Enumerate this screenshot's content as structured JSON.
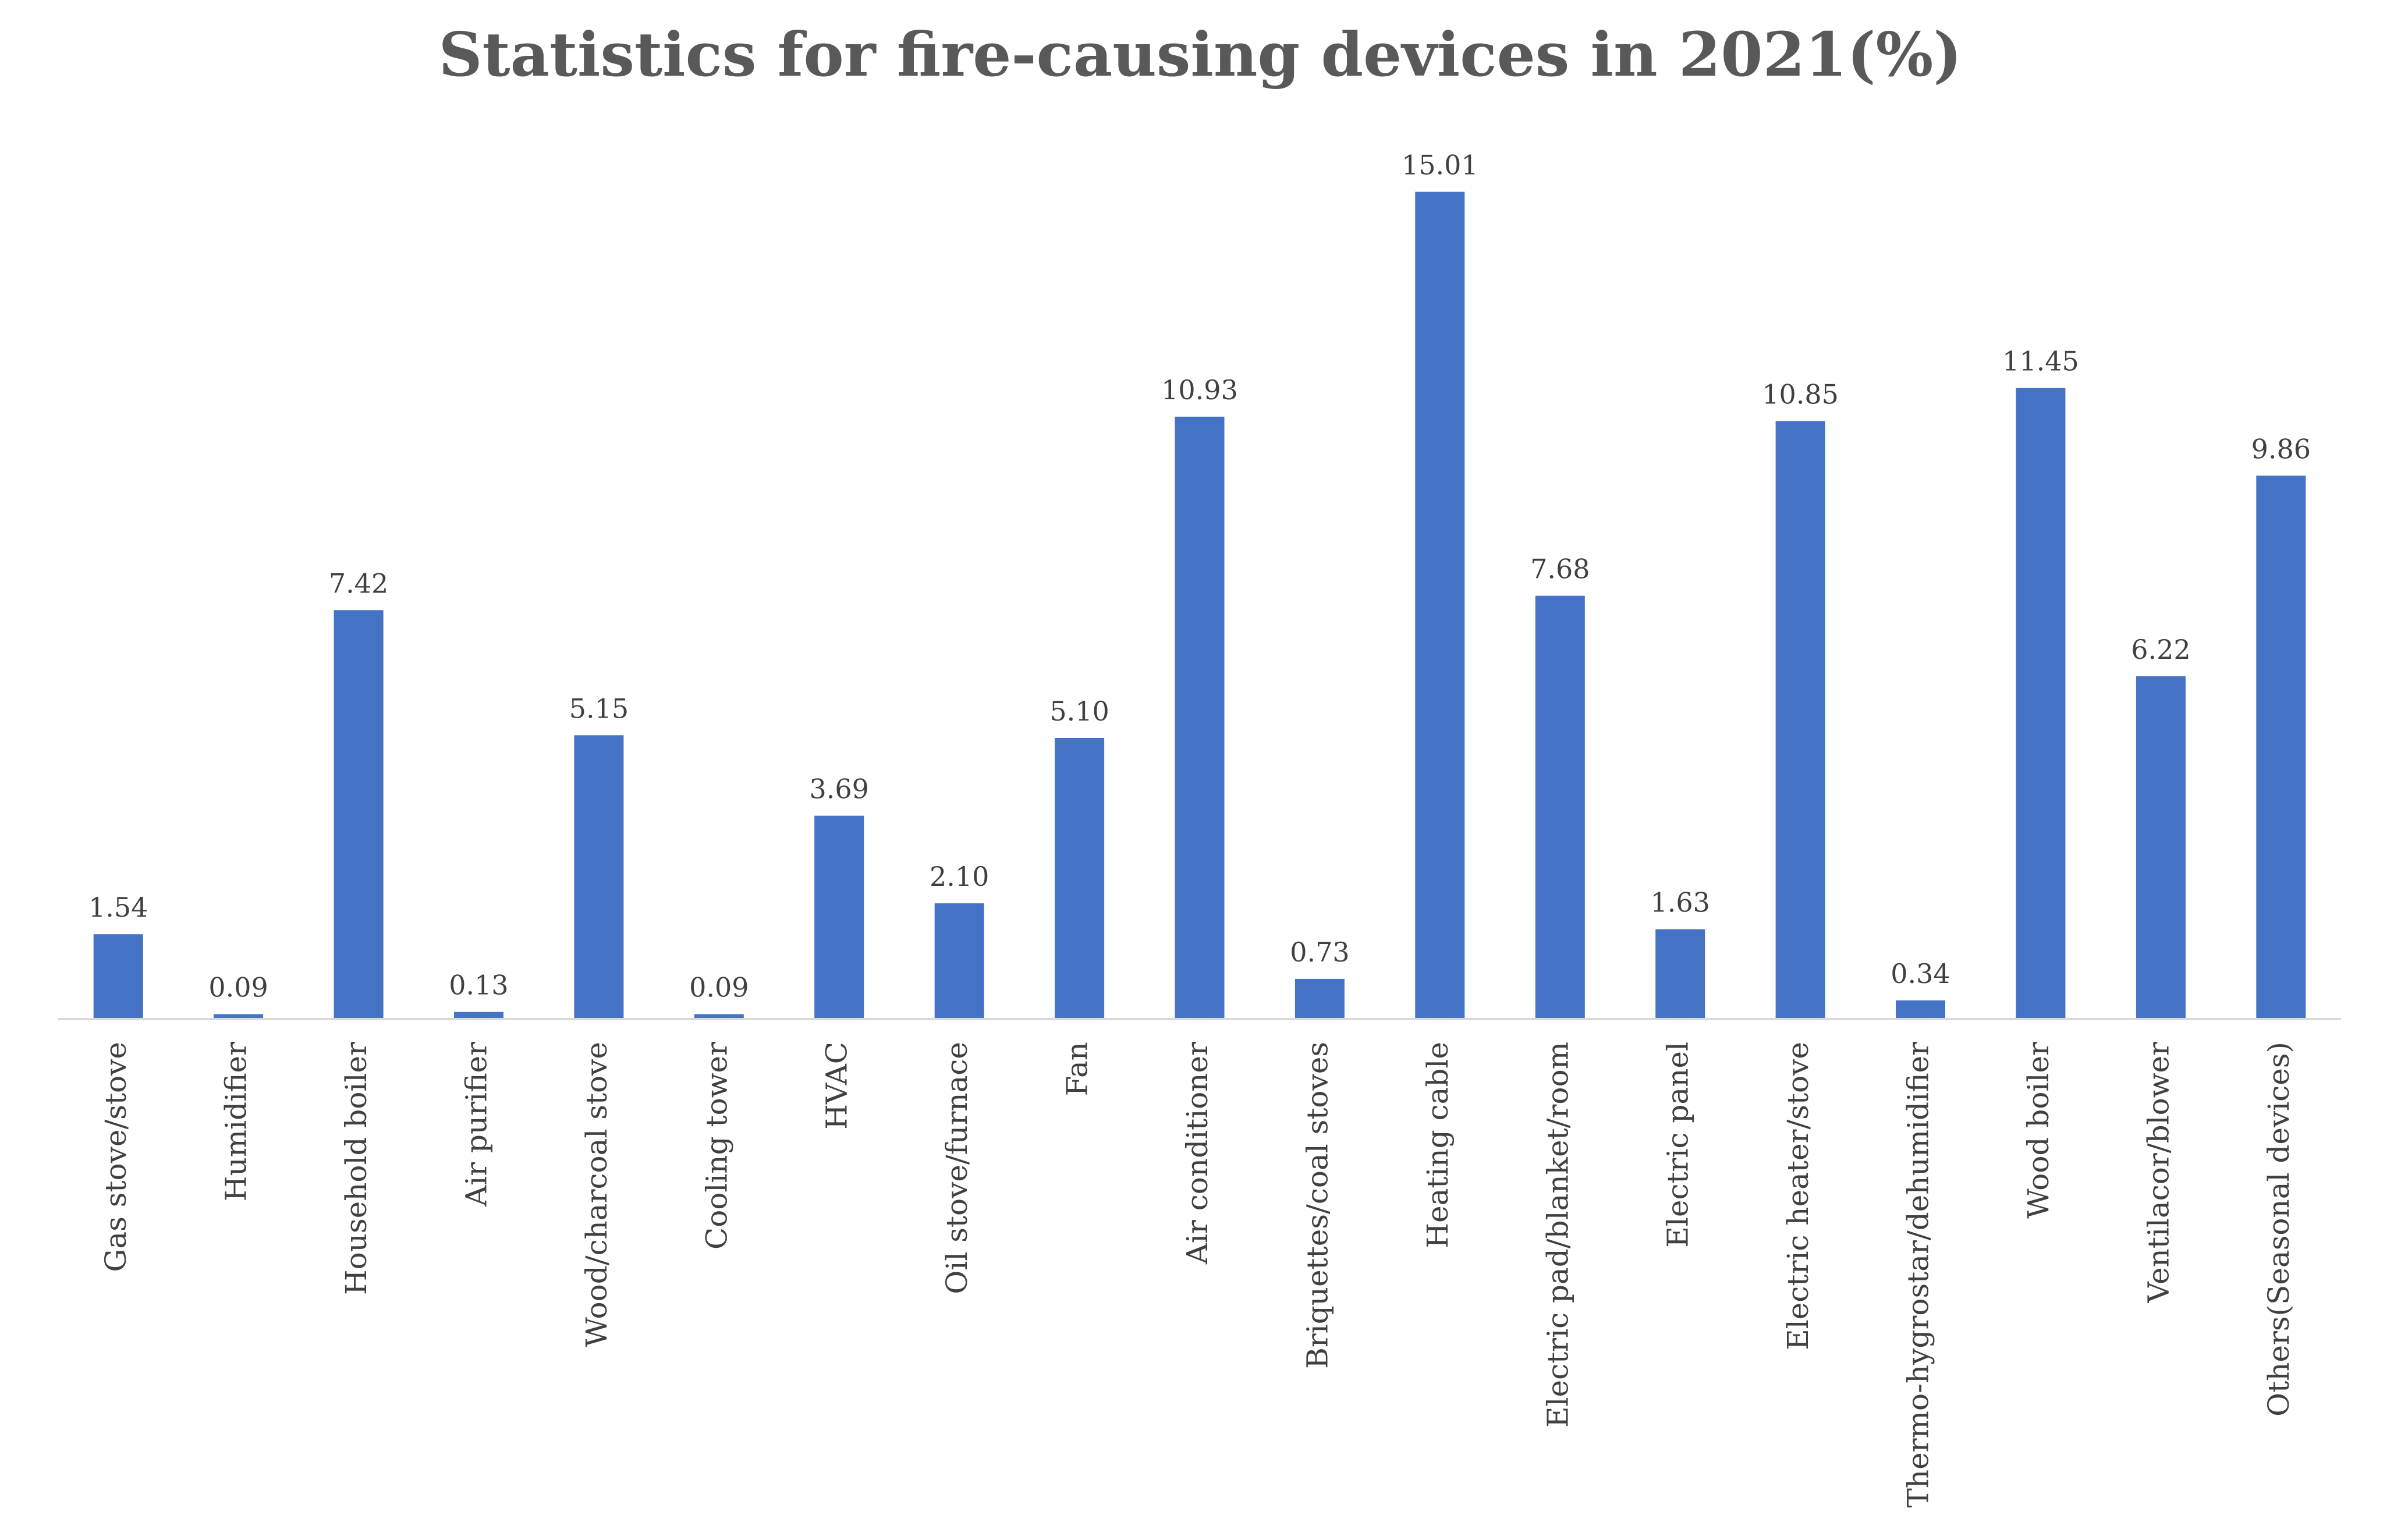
{
  "chart_data": {
    "type": "bar",
    "title": "Statistics for fire-causing devices in 2021(%)",
    "xlabel": "",
    "ylabel": "",
    "ylim": [
      0,
      16
    ],
    "grid": false,
    "legend": "none",
    "bar_color": "#4472C4",
    "axis_color": "#D9D9D9",
    "categories": [
      "Gas stove/stove",
      "Humidifier",
      "Household boiler",
      "Air purifier",
      "Wood/charcoal stove",
      "Cooling tower",
      "HVAC",
      "Oil stove/furnace",
      "Fan",
      "Air conditioner",
      "Briquettes/coal stoves",
      "Heating cable",
      "Electric pad/blanket/room",
      "Electric panel",
      "Electric heater/stove",
      "Thermo-hygrostar/dehumidifier",
      "Wood boiler",
      "Ventilacor/blower",
      "Others(Seasonal devices)"
    ],
    "values": [
      1.54,
      0.09,
      7.42,
      0.13,
      5.15,
      0.09,
      3.69,
      2.1,
      5.1,
      10.93,
      0.73,
      15.01,
      7.68,
      1.63,
      10.85,
      0.34,
      11.45,
      6.22,
      9.86
    ],
    "value_labels": [
      "1.54",
      "0.09",
      "7.42",
      "0.13",
      "5.15",
      "0.09",
      "3.69",
      "2.10",
      "5.10",
      "10.93",
      "0.73",
      "15.01",
      "7.68",
      "1.63",
      "10.85",
      "0.34",
      "11.45",
      "6.22",
      "9.86"
    ]
  }
}
